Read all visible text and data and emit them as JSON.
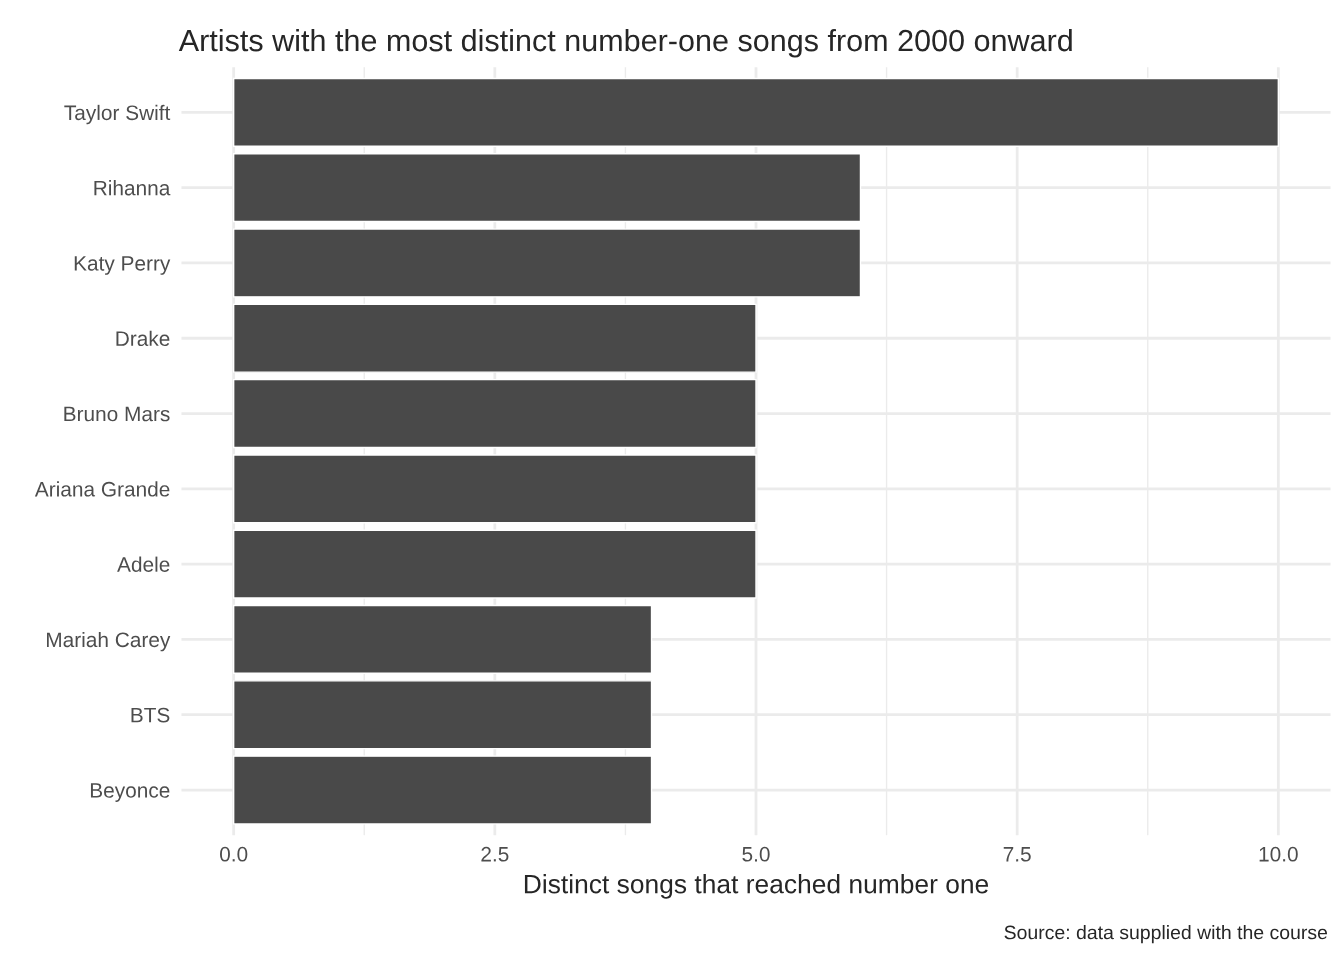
{
  "chart_data": {
    "type": "bar",
    "orientation": "horizontal",
    "title": "Artists with the most distinct number-one songs from 2000 onward",
    "xlabel": "Distinct songs that reached number one",
    "categories": [
      "Taylor Swift",
      "Rihanna",
      "Katy Perry",
      "Drake",
      "Bruno Mars",
      "Ariana Grande",
      "Adele",
      "Mariah Carey",
      "BTS",
      "Beyonce"
    ],
    "values": [
      10,
      6,
      6,
      5,
      5,
      5,
      5,
      4,
      4,
      4
    ],
    "color": "#494949",
    "xlim": [
      -0.5,
      10.5
    ],
    "xticks": [
      {
        "value": 0,
        "label": "0.0"
      },
      {
        "value": 2.5,
        "label": "2.5"
      },
      {
        "value": 5,
        "label": "5.0"
      },
      {
        "value": 7.5,
        "label": "7.5"
      },
      {
        "value": 10,
        "label": "10.0"
      }
    ],
    "grid": true,
    "annotations": [
      "Source: data supplied with the course"
    ]
  }
}
